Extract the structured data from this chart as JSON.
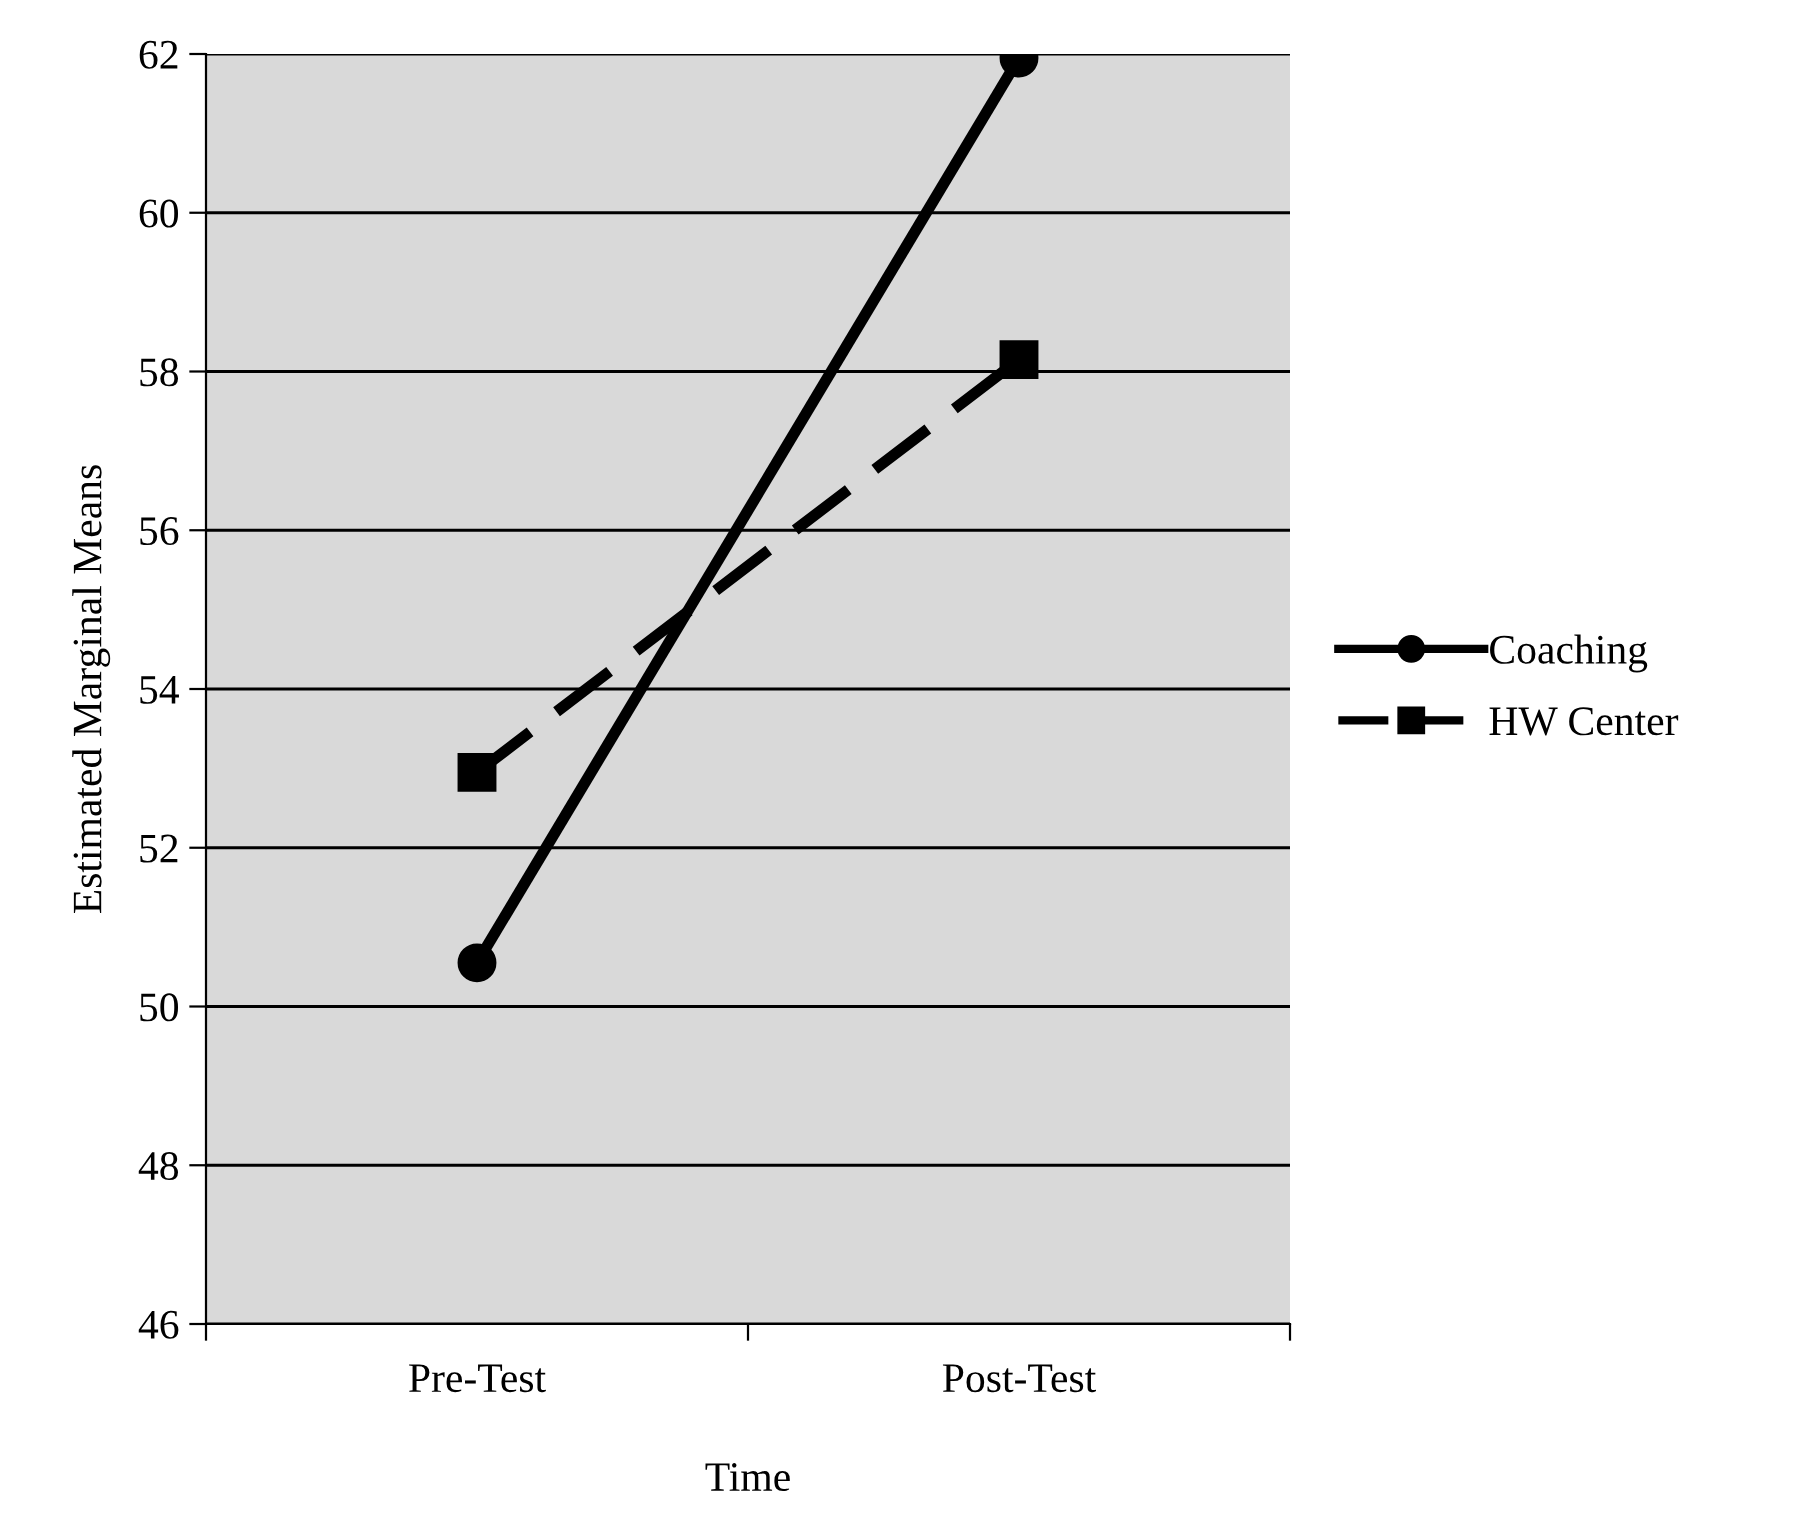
{
  "chart_data": {
    "type": "line",
    "xlabel": "Time",
    "ylabel": "Estimated Marginal Means",
    "categories": [
      "Pre-Test",
      "Post-Test"
    ],
    "series": [
      {
        "name": "Coaching",
        "color": "#000000",
        "values": [
          50.55,
          61.95
        ],
        "marker": "circle",
        "line_style": "solid"
      },
      {
        "name": "HW Center",
        "color": "#000000",
        "values": [
          52.95,
          58.15
        ],
        "marker": "square",
        "line_style": "dashed"
      }
    ],
    "ylim": [
      46,
      62
    ],
    "yticks": [
      46,
      48,
      50,
      52,
      54,
      56,
      58,
      60,
      62
    ],
    "grid": "y",
    "legend": "right"
  }
}
